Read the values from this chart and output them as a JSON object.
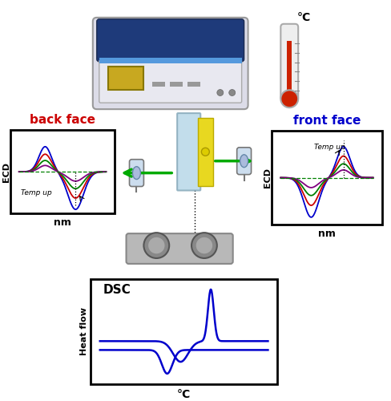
{
  "bg_color": "#ffffff",
  "back_face_label": "back face",
  "front_face_label": "front face",
  "back_face_color": "#cc0000",
  "front_face_color": "#0000cc",
  "ecd_ylabel": "ECD",
  "nm_xlabel": "nm",
  "temp_up_text": "Temp up",
  "dsc_label": "DSC",
  "heat_flow_label": "Heat flow",
  "celsius_label": "°C",
  "curve_colors_back": [
    "#0000cc",
    "#cc0000",
    "#008000",
    "#800080"
  ],
  "curve_colors_front": [
    "#0000cc",
    "#cc0000",
    "#008000",
    "#800080"
  ],
  "arrow_color": "#00aa00",
  "thermometer_color": "#cc0000",
  "dsc_curve_color": "#0000cc"
}
